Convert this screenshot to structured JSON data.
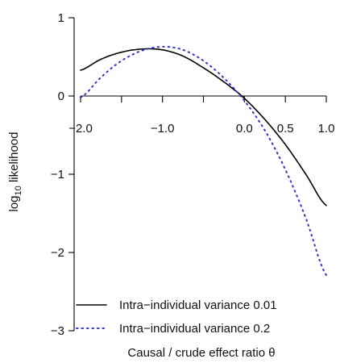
{
  "chart_data": {
    "type": "line",
    "xlabel": "Causal / crude effect ratio θ",
    "ylabel": "log",
    "ylabel_sub": "10",
    "ylabel_rest": " likelihood",
    "xlim": [
      -2.0,
      1.0
    ],
    "ylim": [
      -3,
      1
    ],
    "x_ticks": [
      -2.0,
      -1.5,
      -1.0,
      -0.5,
      0.0,
      0.5,
      1.0
    ],
    "x_tick_labels": [
      "−2.0",
      "",
      "−1.0",
      "",
      "0.0",
      "0.5",
      "1.0"
    ],
    "y_ticks": [
      1,
      0,
      -1,
      -2,
      -3
    ],
    "y_tick_labels": [
      "1",
      "0",
      "−1",
      "−2",
      "−3"
    ],
    "x_axis_position": 0,
    "grid": false,
    "legend_position": "bottom",
    "series": [
      {
        "name": "Intra−individual variance 0.01",
        "style": "solid",
        "color": "#000000",
        "x": [
          -2.0,
          -1.75,
          -1.5,
          -1.25,
          -1.0,
          -0.75,
          -0.5,
          -0.25,
          0.0,
          0.25,
          0.5,
          0.75,
          1.0
        ],
        "y": [
          0.33,
          0.47,
          0.56,
          0.6,
          0.59,
          0.51,
          0.36,
          0.18,
          -0.03,
          -0.3,
          -0.62,
          -1.0,
          -1.4
        ]
      },
      {
        "name": "Intra−individual variance 0.2",
        "style": "dotted",
        "color": "#3333cc",
        "x": [
          -2.0,
          -1.75,
          -1.5,
          -1.25,
          -1.0,
          -0.75,
          -0.5,
          -0.25,
          0.0,
          0.25,
          0.5,
          0.75,
          1.0
        ],
        "y": [
          -0.02,
          0.24,
          0.45,
          0.58,
          0.63,
          0.59,
          0.45,
          0.23,
          -0.06,
          -0.44,
          -0.94,
          -1.56,
          -2.29
        ]
      }
    ]
  }
}
